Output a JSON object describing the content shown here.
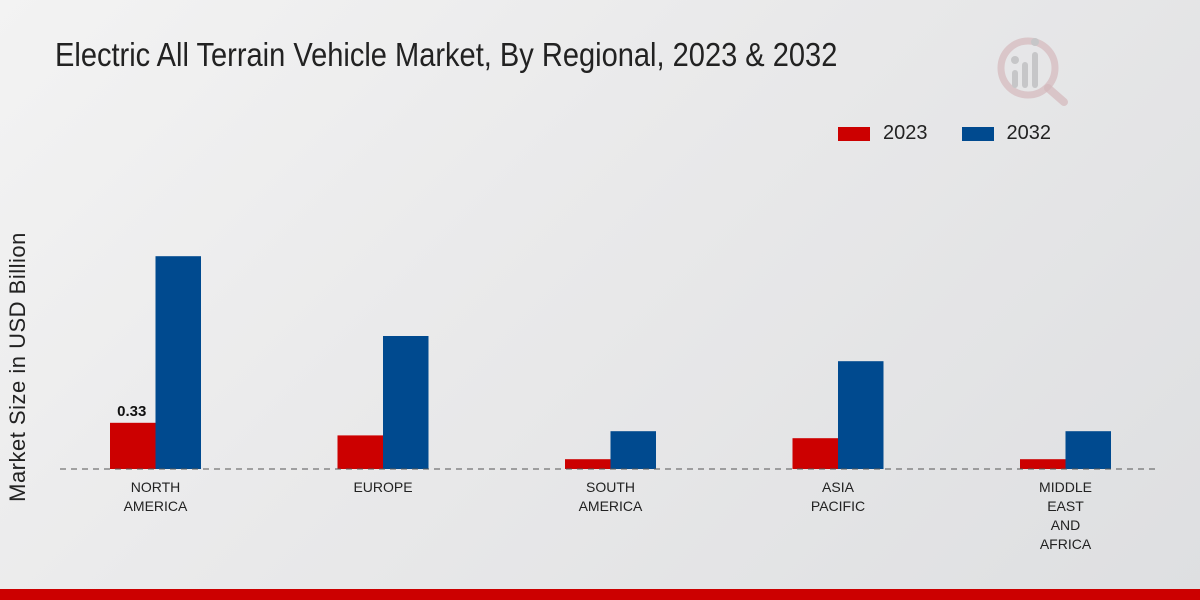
{
  "chart_data": {
    "type": "bar",
    "title": "Electric All Terrain Vehicle Market, By Regional, 2023 & 2032",
    "xlabel": "",
    "ylabel": "Market Size in USD Billion",
    "categories": [
      "NORTH\nAMERICA",
      "EUROPE",
      "SOUTH\nAMERICA",
      "ASIA\nPACIFIC",
      "MIDDLE\nEAST\nAND\nAFRICA"
    ],
    "series": [
      {
        "name": "2023",
        "color": "#cc0000",
        "values": [
          0.33,
          0.24,
          0.07,
          0.22,
          0.07
        ]
      },
      {
        "name": "2032",
        "color": "#004a8f",
        "values": [
          1.52,
          0.95,
          0.27,
          0.77,
          0.27
        ]
      }
    ],
    "data_labels": [
      {
        "series": 0,
        "index": 0,
        "text": "0.33"
      }
    ],
    "ylim": [
      0,
      2.0
    ],
    "grid": false,
    "legend": "top-right",
    "baseline_style": "dashed"
  },
  "colors": {
    "footer": "#cc0000",
    "logo": "#c9a9ad"
  }
}
